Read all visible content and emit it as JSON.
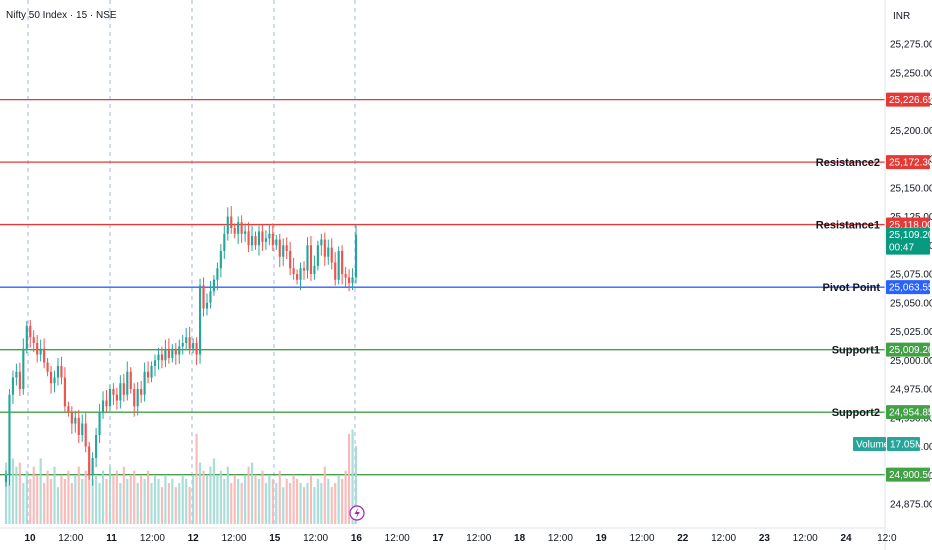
{
  "header": {
    "title": "Nifty 50 Index · 15 · NSE",
    "currency": "INR"
  },
  "colors": {
    "up": "#26a69a",
    "down": "#ef5350",
    "resistance": "#e53935",
    "pivot": "#2962ff",
    "support": "#43a047"
  },
  "chart_data": {
    "type": "candlestick",
    "price_range": [
      24860,
      25290
    ],
    "price_ticks": [
      "25,275.00",
      "25,250.00",
      "25,225.00",
      "25,200.00",
      "25,175.00",
      "25,150.00",
      "25,125.00",
      "25,100.00",
      "25,075.00",
      "25,050.00",
      "25,025.00",
      "25,000.00",
      "24,975.00",
      "24,950.00",
      "24,925.00",
      "24,900.00",
      "24,875.00"
    ],
    "time_ticks": [
      "10",
      "12:00",
      "11",
      "12:00",
      "12",
      "12:00",
      "15",
      "12:00",
      "16",
      "12:00",
      "17",
      "12:00",
      "18",
      "12:00",
      "19",
      "12:00",
      "22",
      "12:00",
      "23",
      "12:00",
      "24",
      "12:0"
    ],
    "levels": [
      {
        "name": "",
        "value": 25226.65,
        "label": "25,226.65",
        "color": "#e53935"
      },
      {
        "name": "Resistance2",
        "value": 25172.3,
        "label": "25,172.30",
        "color": "#e53935"
      },
      {
        "name": "Resistance1",
        "value": 25118.0,
        "label": "25,118.00",
        "color": "#e53935"
      },
      {
        "name": "Pivot Point",
        "value": 25063.55,
        "label": "25,063.55",
        "color": "#2962ff"
      },
      {
        "name": "Support1",
        "value": 25009.2,
        "label": "25,009.20",
        "color": "#43a047"
      },
      {
        "name": "Support2",
        "value": 24954.85,
        "label": "24,954.85",
        "color": "#43a047"
      },
      {
        "name": "",
        "value": 24900.5,
        "label": "24,900.50",
        "color": "#43a047"
      }
    ],
    "last_price": {
      "value": "25,109.20",
      "countdown": "00:47"
    },
    "volume": {
      "label": "Volume",
      "value": "17.05M"
    },
    "closes": [
      24900,
      24970,
      24985,
      24990,
      24975,
      25010,
      25030,
      25020,
      25015,
      25005,
      25010,
      24998,
      24990,
      24980,
      24985,
      24995,
      24985,
      24960,
      24955,
      24945,
      24950,
      24935,
      24945,
      24925,
      24900,
      24915,
      24935,
      24955,
      24965,
      24960,
      24975,
      24970,
      24965,
      24980,
      24970,
      24990,
      24975,
      24960,
      24975,
      24970,
      24990,
      24985,
      24995,
      25000,
      25005,
      25000,
      25010,
      25002,
      25010,
      25005,
      25012,
      25015,
      25020,
      25010,
      25015,
      25005,
      25065,
      25045,
      25050,
      25060,
      25070,
      25080,
      25095,
      25110,
      25125,
      25115,
      25110,
      25120,
      25110,
      25112,
      25100,
      25108,
      25100,
      25112,
      25103,
      25106,
      25110,
      25100,
      25105,
      25090,
      25100,
      25095,
      25080,
      25075,
      25070,
      25080,
      25078,
      25100,
      25075,
      25082,
      25100,
      25105,
      25090,
      25098,
      25085,
      25070,
      25095,
      25075,
      25072,
      25067,
      25072,
      25109
    ],
    "volumes": [
      15,
      12,
      16,
      14,
      15,
      10,
      13,
      11,
      14,
      12,
      16,
      10,
      13,
      11,
      14,
      9,
      12,
      11,
      13,
      10,
      12,
      14,
      11,
      13,
      15,
      11,
      12,
      10,
      13,
      11,
      14,
      12,
      13,
      10,
      14,
      11,
      12,
      13,
      10,
      12,
      11,
      13,
      10,
      12,
      11,
      9,
      12,
      10,
      11,
      9,
      10,
      12,
      11,
      9,
      12,
      22,
      15,
      13,
      12,
      14,
      16,
      12,
      13,
      11,
      14,
      10,
      12,
      11,
      10,
      12,
      14,
      15,
      12,
      11,
      13,
      10,
      12,
      11,
      10,
      13,
      9,
      11,
      10,
      12,
      11,
      10,
      9,
      10,
      12,
      9,
      11,
      10,
      14,
      11,
      9,
      10,
      12,
      11,
      13,
      22,
      23,
      19
    ]
  }
}
